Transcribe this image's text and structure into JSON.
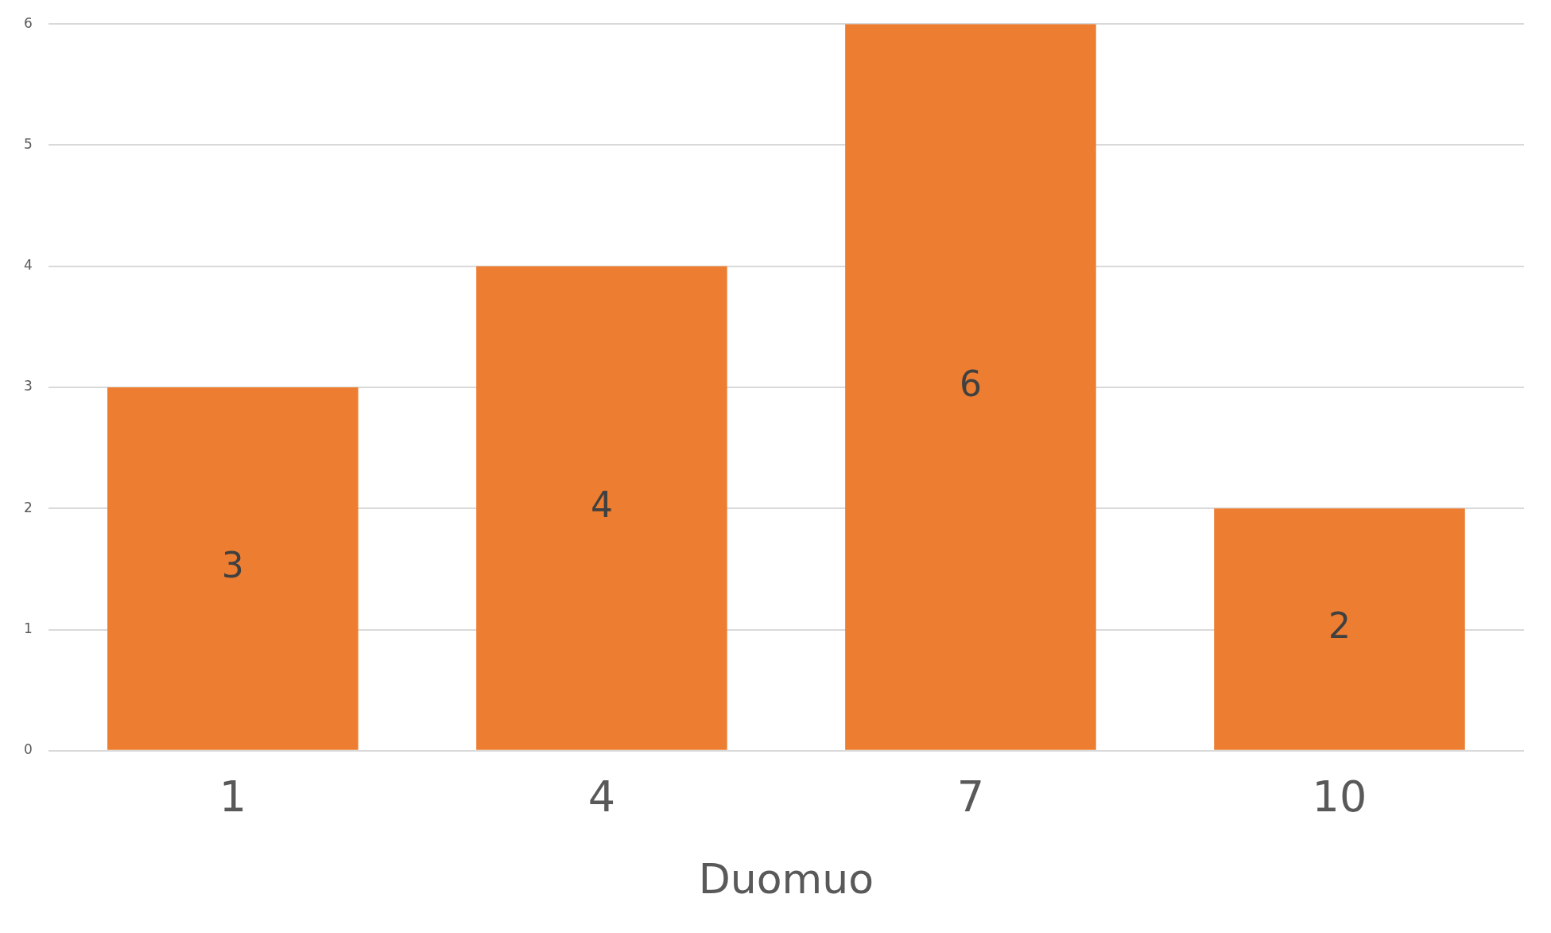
{
  "chart_data": {
    "type": "bar",
    "xlabel": "Duomuo",
    "categories": [
      "1",
      "4",
      "7",
      "10"
    ],
    "values": [
      3,
      4,
      6,
      2
    ],
    "color": "#ed7d31",
    "ylim": [
      0,
      6
    ],
    "yticks": [
      0,
      1,
      2,
      3,
      4,
      5,
      6
    ],
    "grid": "y",
    "data_labels": true
  }
}
